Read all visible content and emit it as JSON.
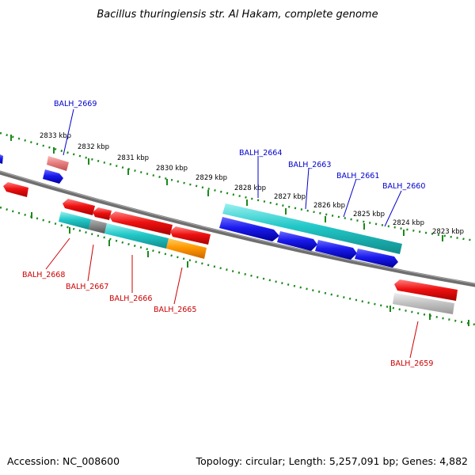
{
  "title": "Bacillus thuringiensis str. Al Hakam, complete genome",
  "footer": {
    "accession": "Accession: NC_008600",
    "summary": "Topology: circular; Length: 5,257,091 bp; Genes: 4,882"
  },
  "colors": {
    "backbone": "#777777",
    "ticks": "#1a8a1a",
    "forward_label": "#0000cc",
    "reverse_label": "#cc0000",
    "red": "#ee1111",
    "blue": "#1a1aee",
    "cyan": "#22c8c8",
    "orange": "#ff9900",
    "gray": "#888888",
    "light_gray": "#c4c4c4",
    "pink": "#e88080"
  },
  "ticks": {
    "labels": [
      "2833 kbp",
      "2832 kbp",
      "2831 kbp",
      "2830 kbp",
      "2829 kbp",
      "2828 kbp",
      "2827 kbp",
      "2826 kbp",
      "2825 kbp",
      "2824 kbp",
      "2823 kbp"
    ]
  },
  "forward_genes": [
    {
      "name": "BALH_2669",
      "color": "pink"
    },
    {
      "name": "BALH_2664",
      "color": "blue"
    },
    {
      "name": "BALH_2663",
      "color": "blue"
    },
    {
      "name": "BALH_2661",
      "color": "blue"
    },
    {
      "name": "BALH_2660",
      "color": "cyan"
    }
  ],
  "reverse_genes": [
    {
      "name": "BALH_2668",
      "color": "red"
    },
    {
      "name": "BALH_2667",
      "color": "cyan"
    },
    {
      "name": "BALH_2666",
      "color": "red"
    },
    {
      "name": "BALH_2665",
      "color": "orange"
    },
    {
      "name": "BALH_2659",
      "color": "red"
    }
  ]
}
